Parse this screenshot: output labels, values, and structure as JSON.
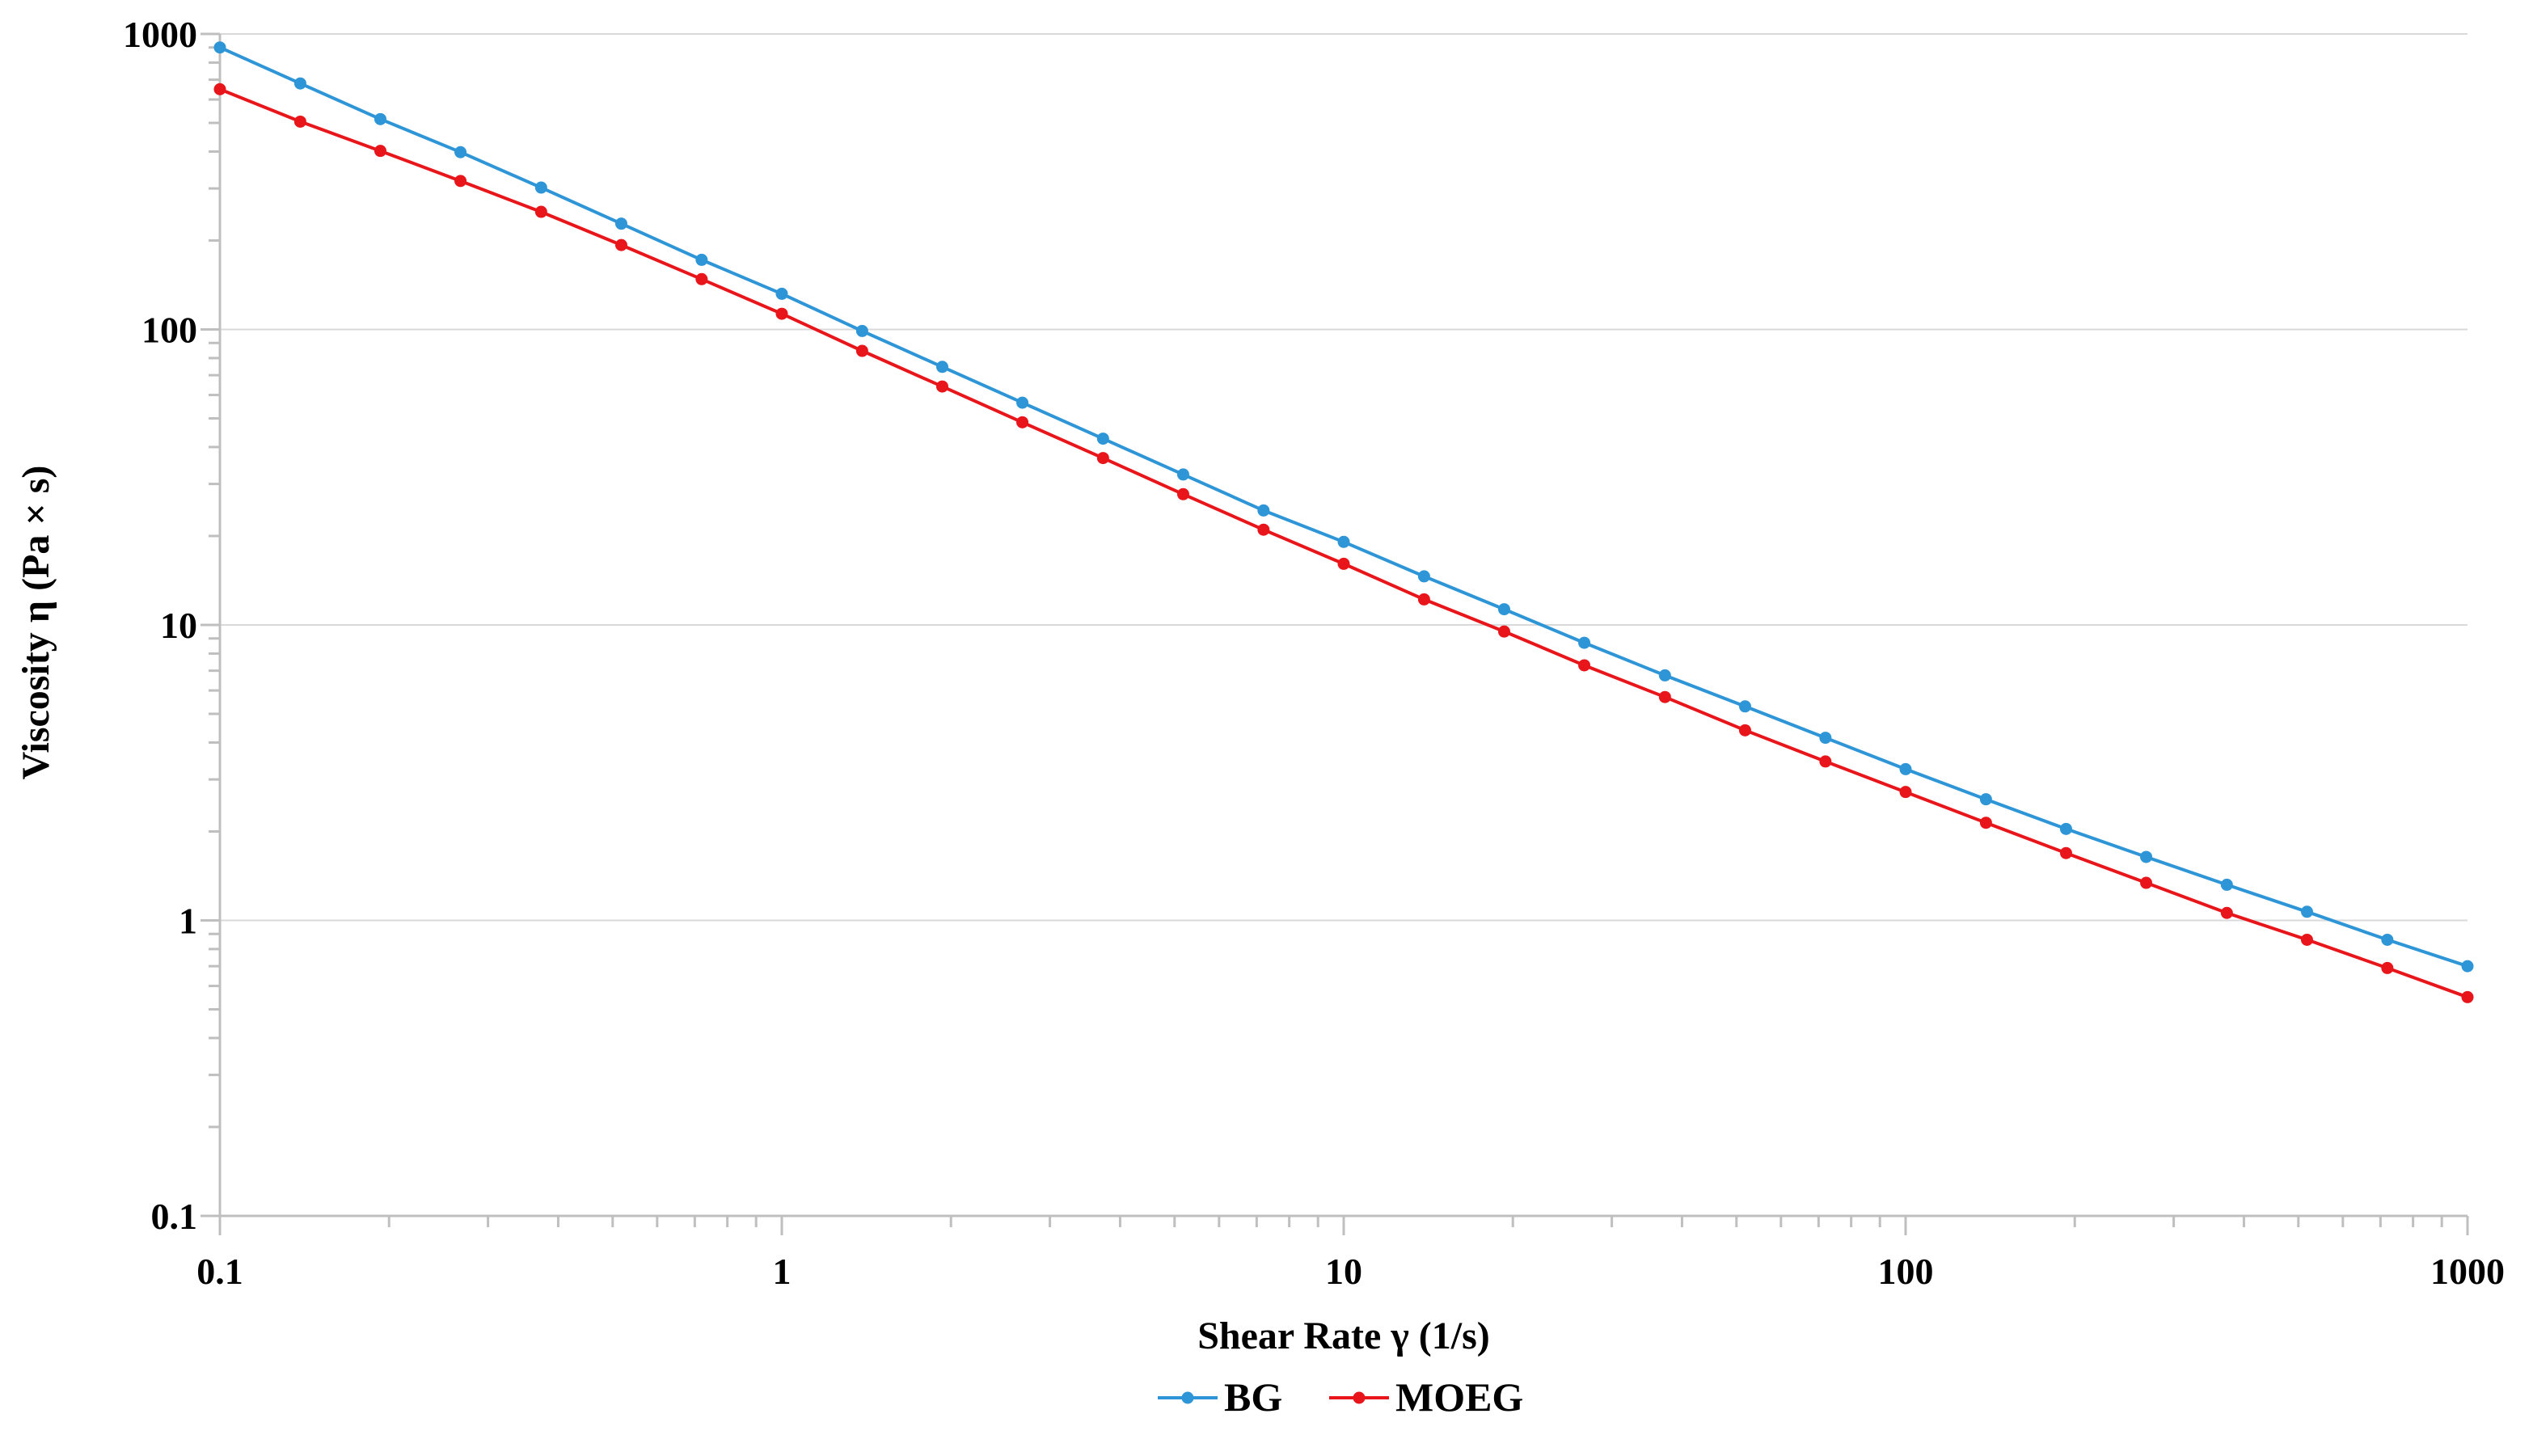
{
  "chart_data": {
    "type": "line",
    "title": "",
    "xlabel": "Shear Rate γ (1/s)",
    "ylabel": "Viscosity η (Pa × s)",
    "xscale": "log",
    "yscale": "log",
    "xlim": [
      0.1,
      1000
    ],
    "ylim": [
      0.1,
      1000
    ],
    "xticks": [
      "0.1",
      "1",
      "10",
      "100",
      "1000"
    ],
    "yticks": [
      "0.1",
      "1",
      "10",
      "100",
      "1000"
    ],
    "grid": true,
    "legend_position": "bottom-center",
    "x": [
      0.1,
      0.139,
      0.193,
      0.268,
      0.373,
      0.518,
      0.72,
      1.0,
      1.39,
      1.93,
      2.68,
      3.73,
      5.18,
      7.2,
      10.0,
      13.9,
      19.3,
      26.8,
      37.3,
      51.8,
      72.0,
      100,
      139,
      193,
      268,
      373,
      518,
      720,
      1000
    ],
    "series": [
      {
        "name": "BG",
        "color": "#2e95d6",
        "values": [
          900,
          680,
          515,
          398,
          302,
          228,
          172,
          132,
          98.8,
          74.7,
          56.5,
          42.7,
          32.3,
          24.4,
          19.1,
          14.6,
          11.3,
          8.7,
          6.75,
          5.3,
          4.15,
          3.25,
          2.57,
          2.04,
          1.64,
          1.32,
          1.07,
          0.86,
          0.7
        ]
      },
      {
        "name": "MOEG",
        "color": "#e8161a",
        "values": [
          650,
          505,
          402,
          318,
          250,
          193,
          148,
          113,
          84.6,
          64.1,
          48.5,
          36.7,
          27.7,
          21.0,
          16.1,
          12.2,
          9.5,
          7.3,
          5.7,
          4.4,
          3.45,
          2.72,
          2.14,
          1.69,
          1.34,
          1.06,
          0.86,
          0.69,
          0.55
        ]
      }
    ]
  }
}
